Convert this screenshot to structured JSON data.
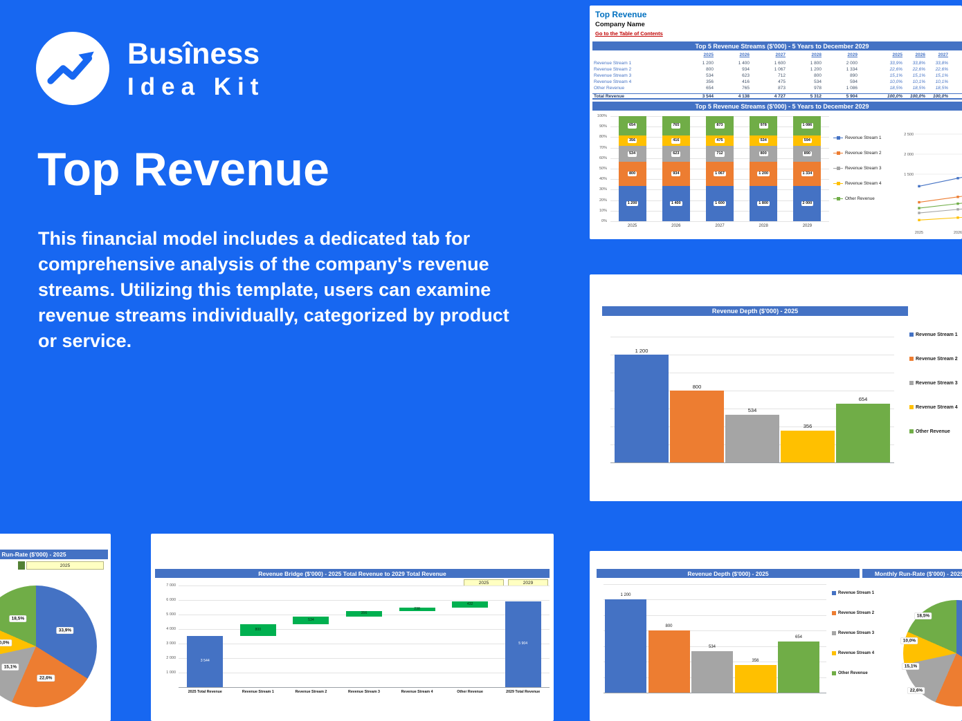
{
  "brand": {
    "line1": "Busîness",
    "line2": "Idea Kit"
  },
  "hero": {
    "title": "Top Revenue",
    "description": "This financial model includes a dedicated tab for comprehensive analysis of the company's revenue streams. Utilizing this template, users can examine revenue streams individually, categorized by product or service."
  },
  "legend": [
    "Revenue Stream 1",
    "Revenue Stream 2",
    "Revenue Stream 3",
    "Revenue Stream 4",
    "Other Revenue"
  ],
  "colors": {
    "background": "#1767F1",
    "panel": "#FFFFFF",
    "header_bar": "#4472C4",
    "stream1": "#4472C4",
    "stream2": "#ED7D31",
    "stream3": "#A5A5A5",
    "stream4": "#FFC000",
    "other": "#70AD47",
    "bridge_delta": "#00B050",
    "link": "#C00000",
    "sheet_title": "#0070C0"
  },
  "sheet": {
    "title": "Top Revenue",
    "company": "Company Name",
    "toc_link": "Go to the Table of Contents",
    "table_title": "Top 5 Revenue Streams ($'000) - 5 Years to December 2029",
    "years": [
      "2025",
      "2026",
      "2027",
      "2028",
      "2029"
    ],
    "pct_years": [
      "2025",
      "2026",
      "2027"
    ],
    "rows": [
      {
        "label": "Revenue Stream 1",
        "values": [
          "1 200",
          "1 400",
          "1 600",
          "1 800",
          "2 000"
        ],
        "pcts": [
          "33,9%",
          "33,8%",
          "33,8%"
        ]
      },
      {
        "label": "Revenue Stream 2",
        "values": [
          "800",
          "934",
          "1 067",
          "1 200",
          "1 334"
        ],
        "pcts": [
          "22,6%",
          "22,6%",
          "22,6%"
        ]
      },
      {
        "label": "Revenue Stream 3",
        "values": [
          "534",
          "623",
          "712",
          "800",
          "890"
        ],
        "pcts": [
          "15,1%",
          "15,1%",
          "15,1%"
        ]
      },
      {
        "label": "Revenue Stream 4",
        "values": [
          "356",
          "416",
          "475",
          "534",
          "594"
        ],
        "pcts": [
          "10,0%",
          "10,1%",
          "10,1%"
        ]
      },
      {
        "label": "Other Revenue",
        "values": [
          "654",
          "765",
          "873",
          "978",
          "1 086"
        ],
        "pcts": [
          "18,5%",
          "18,5%",
          "18,5%"
        ]
      },
      {
        "label": "Total Revenue",
        "values": [
          "3 544",
          "4 138",
          "4 727",
          "5 312",
          "5 904"
        ],
        "pcts": [
          "100,0%",
          "100,0%",
          "100,0%"
        ],
        "total": true
      }
    ]
  },
  "chart_data": [
    {
      "id": "top5-stacked",
      "type": "bar",
      "stacked": true,
      "title": "Top 5 Revenue Streams ($'000) - 5 Years to December 2029",
      "categories": [
        "2025",
        "2026",
        "2027",
        "2028",
        "2029"
      ],
      "series": [
        {
          "name": "Revenue Stream 1",
          "values": [
            1200,
            1400,
            1600,
            1800,
            2000
          ]
        },
        {
          "name": "Revenue Stream 2",
          "values": [
            800,
            934,
            1067,
            1200,
            1334
          ]
        },
        {
          "name": "Revenue Stream 3",
          "values": [
            534,
            623,
            712,
            800,
            890
          ]
        },
        {
          "name": "Revenue Stream 4",
          "values": [
            356,
            416,
            475,
            534,
            594
          ]
        },
        {
          "name": "Other Revenue",
          "values": [
            654,
            765,
            873,
            978,
            1086
          ]
        }
      ],
      "ylabel_ticks": [
        "100%",
        "90%",
        "80%",
        "70%",
        "60%",
        "50%",
        "40%",
        "30%",
        "20%",
        "10%",
        "0%"
      ],
      "legend_position": "right"
    },
    {
      "id": "top5-lines",
      "type": "line",
      "y_ticks": [
        "2 500",
        "2 000",
        "1 500"
      ],
      "x_ticks": [
        "2025",
        "2026"
      ]
    },
    {
      "id": "revenue-depth-2025",
      "type": "bar",
      "title": "Revenue Depth ($'000) - 2025",
      "categories": [
        "Revenue Stream 1",
        "Revenue Stream 2",
        "Revenue Stream 3",
        "Revenue Stream 4",
        "Other Revenue"
      ],
      "values": [
        1200,
        800,
        534,
        356,
        654
      ],
      "labels": [
        "1 200",
        "800",
        "534",
        "356",
        "654"
      ],
      "ylim": [
        0,
        1400
      ],
      "legend_position": "right"
    },
    {
      "id": "runrate-2025",
      "type": "pie",
      "title": "Run-Rate ($'000) - 2025",
      "year_selector": "2025",
      "slices": [
        {
          "name": "Revenue Stream 1",
          "pct": 33.9,
          "label": "33,9%"
        },
        {
          "name": "Revenue Stream 2",
          "pct": 22.6,
          "label": "22,6%"
        },
        {
          "name": "Revenue Stream 3",
          "pct": 15.1,
          "label": "15,1%"
        },
        {
          "name": "Revenue Stream 4",
          "pct": 10.0,
          "label": "10,0%"
        },
        {
          "name": "Other Revenue",
          "pct": 18.5,
          "label": "18,5%"
        }
      ]
    },
    {
      "id": "revenue-bridge",
      "type": "waterfall",
      "title": "Revenue Bridge ($'000) - 2025 Total Revenue to 2029 Total Revenue",
      "year_from": "2025",
      "year_to": "2029",
      "categories": [
        "2025 Total Revenue",
        "Revenue Stream 1",
        "Revenue Stream 2",
        "Revenue Stream 3",
        "Revenue Stream 4",
        "Other Revenue",
        "2029 Total Revenue"
      ],
      "values": [
        3544,
        800,
        534,
        356,
        238,
        432,
        5904
      ],
      "labels": [
        "3 544",
        "800",
        "534",
        "356",
        "238",
        "432",
        "5 904"
      ],
      "kinds": [
        "total",
        "delta",
        "delta",
        "delta",
        "delta",
        "delta",
        "total"
      ],
      "y_ticks": [
        "7 000",
        "6 000",
        "5 000",
        "4 000",
        "3 000",
        "2 000",
        "1 000"
      ],
      "ylim": [
        0,
        7000
      ]
    },
    {
      "id": "monthly-runrate",
      "type": "pie",
      "title": "Monthly Run-Rate ($'000) - 2025",
      "visible_labels": [
        "18,5%",
        "10,0%",
        "15,1%",
        "22,6%"
      ]
    }
  ]
}
